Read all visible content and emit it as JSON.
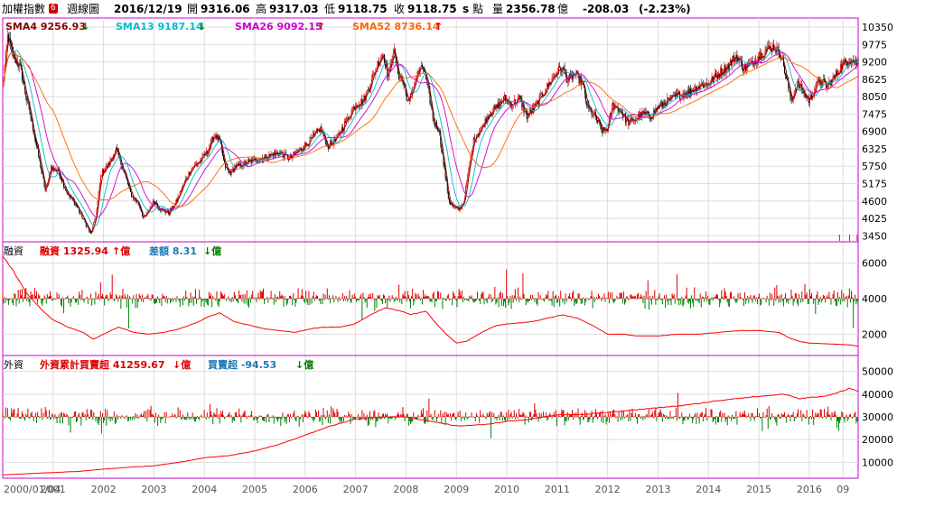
{
  "header": {
    "title": "加權指數",
    "badge": "6",
    "period": "週線圖",
    "date": "2016/12/19",
    "open_label": "開",
    "open": "9316.06",
    "high_label": "高",
    "high": "9317.03",
    "low_label": "低",
    "low": "9118.75",
    "close_label": "收",
    "close": "9118.75",
    "close_suffix": "s",
    "unit_label": "點",
    "vol_label": "量",
    "vol": "2356.78",
    "vol_unit": "億",
    "change": "-208.03",
    "change_pct": "(-2.23%)"
  },
  "ma_legend": [
    {
      "name": "SMA4",
      "value": "9256.93",
      "arrow": "↓",
      "color": "#8b0000",
      "arrow_color": "#008000"
    },
    {
      "name": "SMA13",
      "value": "9187.14",
      "arrow": "↓",
      "color": "#00bcd4",
      "arrow_color": "#008000"
    },
    {
      "name": "SMA26",
      "value": "9092.15",
      "arrow": "↑",
      "color": "#cc00cc",
      "arrow_color": "#dd0000"
    },
    {
      "name": "SMA52",
      "value": "8736.14",
      "arrow": "↑",
      "color": "#ff6600",
      "arrow_color": "#dd0000"
    }
  ],
  "margin_legend": {
    "panel": "融資",
    "a_name": "融資",
    "a_value": "1325.94",
    "a_arrow": "↑",
    "a_unit": "億",
    "b_name": "差額",
    "b_value": "8.31",
    "b_arrow": "↓",
    "b_unit": "億"
  },
  "foreign_legend": {
    "panel": "外資",
    "a_name": "外資累計買賣超",
    "a_value": "41259.67",
    "a_arrow": "↓",
    "a_unit": "億",
    "b_name": "買賣超",
    "b_value": "-94.53",
    "b_arrow": "↓",
    "b_unit": "億"
  },
  "colors": {
    "up": "#dd0000",
    "down": "#008000",
    "candle_body": "#000000",
    "line": "#ff0000",
    "grid": "#dddddd",
    "frame": "#cc00cc"
  },
  "chart_data": [
    {
      "type": "candlestick",
      "title": "加權指數 週線圖",
      "y_ticks": [
        3450,
        4025,
        4600,
        5175,
        5750,
        6325,
        6900,
        7475,
        8050,
        8625,
        9200,
        9775,
        10350
      ],
      "ylim": [
        3250,
        10650
      ],
      "x_ticks": [
        "2000/01/04",
        "2001",
        "2002",
        "2003",
        "2004",
        "2005",
        "2006",
        "2007",
        "2008",
        "2009",
        "2010",
        "2011",
        "2012",
        "2013",
        "2014",
        "2015",
        "2016",
        "09"
      ],
      "price_path": [
        [
          2000.0,
          8400
        ],
        [
          2000.1,
          10100
        ],
        [
          2000.2,
          9400
        ],
        [
          2000.35,
          9000
        ],
        [
          2000.5,
          7800
        ],
        [
          2000.7,
          6200
        ],
        [
          2000.85,
          4900
        ],
        [
          2000.95,
          5700
        ],
        [
          2001.1,
          5600
        ],
        [
          2001.3,
          4800
        ],
        [
          2001.45,
          4500
        ],
        [
          2001.6,
          4000
        ],
        [
          2001.75,
          3500
        ],
        [
          2001.85,
          4100
        ],
        [
          2001.95,
          5500
        ],
        [
          2002.1,
          5800
        ],
        [
          2002.25,
          6300
        ],
        [
          2002.4,
          5600
        ],
        [
          2002.55,
          4800
        ],
        [
          2002.7,
          4500
        ],
        [
          2002.8,
          4000
        ],
        [
          2002.9,
          4300
        ],
        [
          2003.0,
          4600
        ],
        [
          2003.15,
          4300
        ],
        [
          2003.3,
          4200
        ],
        [
          2003.45,
          4600
        ],
        [
          2003.6,
          5200
        ],
        [
          2003.75,
          5700
        ],
        [
          2003.9,
          5900
        ],
        [
          2004.05,
          6200
        ],
        [
          2004.2,
          6800
        ],
        [
          2004.3,
          6600
        ],
        [
          2004.4,
          5800
        ],
        [
          2004.5,
          5500
        ],
        [
          2004.6,
          5700
        ],
        [
          2004.75,
          5800
        ],
        [
          2004.9,
          5900
        ],
        [
          2005.1,
          6000
        ],
        [
          2005.3,
          6100
        ],
        [
          2005.5,
          6200
        ],
        [
          2005.7,
          6000
        ],
        [
          2005.9,
          6300
        ],
        [
          2006.1,
          6600
        ],
        [
          2006.3,
          7000
        ],
        [
          2006.45,
          6400
        ],
        [
          2006.6,
          6600
        ],
        [
          2006.8,
          7200
        ],
        [
          2007.0,
          7800
        ],
        [
          2007.15,
          7900
        ],
        [
          2007.3,
          8500
        ],
        [
          2007.45,
          9200
        ],
        [
          2007.55,
          9500
        ],
        [
          2007.65,
          8700
        ],
        [
          2007.75,
          9600
        ],
        [
          2007.85,
          8800
        ],
        [
          2007.95,
          8500
        ],
        [
          2008.05,
          7800
        ],
        [
          2008.15,
          8400
        ],
        [
          2008.25,
          8900
        ],
        [
          2008.35,
          9000
        ],
        [
          2008.45,
          8200
        ],
        [
          2008.55,
          7200
        ],
        [
          2008.65,
          7000
        ],
        [
          2008.75,
          5800
        ],
        [
          2008.85,
          4600
        ],
        [
          2008.95,
          4400
        ],
        [
          2009.05,
          4300
        ],
        [
          2009.15,
          4600
        ],
        [
          2009.25,
          5700
        ],
        [
          2009.35,
          6700
        ],
        [
          2009.5,
          7000
        ],
        [
          2009.65,
          7500
        ],
        [
          2009.8,
          7700
        ],
        [
          2009.95,
          8000
        ],
        [
          2010.1,
          7800
        ],
        [
          2010.25,
          8000
        ],
        [
          2010.4,
          7400
        ],
        [
          2010.55,
          7700
        ],
        [
          2010.7,
          8100
        ],
        [
          2010.85,
          8500
        ],
        [
          2011.0,
          8900
        ],
        [
          2011.1,
          9000
        ],
        [
          2011.2,
          8600
        ],
        [
          2011.35,
          8800
        ],
        [
          2011.5,
          8500
        ],
        [
          2011.6,
          7700
        ],
        [
          2011.75,
          7400
        ],
        [
          2011.9,
          6900
        ],
        [
          2012.0,
          7000
        ],
        [
          2012.1,
          7800
        ],
        [
          2012.25,
          7600
        ],
        [
          2012.4,
          7200
        ],
        [
          2012.55,
          7300
        ],
        [
          2012.7,
          7500
        ],
        [
          2012.85,
          7400
        ],
        [
          2013.0,
          7700
        ],
        [
          2013.2,
          7900
        ],
        [
          2013.4,
          8100
        ],
        [
          2013.6,
          8200
        ],
        [
          2013.8,
          8400
        ],
        [
          2014.0,
          8500
        ],
        [
          2014.2,
          8800
        ],
        [
          2014.4,
          9100
        ],
        [
          2014.55,
          9400
        ],
        [
          2014.7,
          9000
        ],
        [
          2014.85,
          9100
        ],
        [
          2015.0,
          9400
        ],
        [
          2015.15,
          9600
        ],
        [
          2015.3,
          9700
        ],
        [
          2015.45,
          9400
        ],
        [
          2015.55,
          8600
        ],
        [
          2015.65,
          7900
        ],
        [
          2015.75,
          8500
        ],
        [
          2015.85,
          8300
        ],
        [
          2016.0,
          7900
        ],
        [
          2016.1,
          8300
        ],
        [
          2016.2,
          8600
        ],
        [
          2016.35,
          8400
        ],
        [
          2016.5,
          8700
        ],
        [
          2016.65,
          9100
        ],
        [
          2016.8,
          9300
        ],
        [
          2016.97,
          9119
        ]
      ],
      "sma_legend": [
        "SMA4",
        "SMA13",
        "SMA26",
        "SMA52"
      ]
    },
    {
      "type": "bar+line",
      "title": "融資",
      "y_ticks": [
        2000,
        4000,
        6000
      ],
      "ylim": [
        800,
        7200
      ],
      "bar_baseline": 4000,
      "line_path": [
        [
          2000.0,
          6400
        ],
        [
          2000.2,
          5600
        ],
        [
          2000.5,
          4200
        ],
        [
          2000.8,
          3300
        ],
        [
          2001.0,
          2800
        ],
        [
          2001.3,
          2400
        ],
        [
          2001.6,
          2100
        ],
        [
          2001.8,
          1700
        ],
        [
          2002.0,
          2000
        ],
        [
          2002.3,
          2400
        ],
        [
          2002.6,
          2100
        ],
        [
          2002.9,
          2000
        ],
        [
          2003.2,
          2100
        ],
        [
          2003.5,
          2300
        ],
        [
          2003.8,
          2600
        ],
        [
          2004.1,
          3000
        ],
        [
          2004.3,
          3200
        ],
        [
          2004.6,
          2700
        ],
        [
          2004.9,
          2500
        ],
        [
          2005.2,
          2300
        ],
        [
          2005.5,
          2200
        ],
        [
          2005.8,
          2100
        ],
        [
          2006.1,
          2300
        ],
        [
          2006.4,
          2400
        ],
        [
          2006.7,
          2400
        ],
        [
          2007.0,
          2600
        ],
        [
          2007.3,
          3100
        ],
        [
          2007.6,
          3500
        ],
        [
          2007.9,
          3300
        ],
        [
          2008.1,
          3100
        ],
        [
          2008.4,
          3300
        ],
        [
          2008.6,
          2600
        ],
        [
          2008.8,
          2000
        ],
        [
          2009.0,
          1500
        ],
        [
          2009.2,
          1600
        ],
        [
          2009.5,
          2100
        ],
        [
          2009.8,
          2500
        ],
        [
          2010.1,
          2600
        ],
        [
          2010.5,
          2700
        ],
        [
          2010.8,
          2900
        ],
        [
          2011.1,
          3100
        ],
        [
          2011.4,
          2900
        ],
        [
          2011.7,
          2500
        ],
        [
          2012.0,
          2000
        ],
        [
          2012.3,
          2000
        ],
        [
          2012.6,
          1900
        ],
        [
          2013.0,
          1900
        ],
        [
          2013.4,
          2000
        ],
        [
          2013.8,
          2000
        ],
        [
          2014.2,
          2100
        ],
        [
          2014.6,
          2200
        ],
        [
          2015.0,
          2200
        ],
        [
          2015.4,
          2100
        ],
        [
          2015.6,
          1800
        ],
        [
          2015.8,
          1600
        ],
        [
          2016.0,
          1500
        ],
        [
          2016.4,
          1450
        ],
        [
          2016.8,
          1400
        ],
        [
          2016.97,
          1326
        ]
      ],
      "bar_amplitude": 420
    },
    {
      "type": "bar+line",
      "title": "外資",
      "y_ticks": [
        10000,
        20000,
        30000,
        40000,
        50000
      ],
      "ylim": [
        3000,
        57000
      ],
      "bar_baseline": 30000,
      "line_path": [
        [
          2000.0,
          4500
        ],
        [
          2000.5,
          5000
        ],
        [
          2001.0,
          5500
        ],
        [
          2001.5,
          6000
        ],
        [
          2002.0,
          7000
        ],
        [
          2002.5,
          7800
        ],
        [
          2003.0,
          8500
        ],
        [
          2003.5,
          10000
        ],
        [
          2004.0,
          12000
        ],
        [
          2004.5,
          13000
        ],
        [
          2005.0,
          15000
        ],
        [
          2005.5,
          18000
        ],
        [
          2006.0,
          22000
        ],
        [
          2006.5,
          26000
        ],
        [
          2007.0,
          29000
        ],
        [
          2007.5,
          30000
        ],
        [
          2008.0,
          30000
        ],
        [
          2008.5,
          28000
        ],
        [
          2009.0,
          26000
        ],
        [
          2009.5,
          26500
        ],
        [
          2010.0,
          28000
        ],
        [
          2010.5,
          29000
        ],
        [
          2011.0,
          31000
        ],
        [
          2011.5,
          31000
        ],
        [
          2012.0,
          32000
        ],
        [
          2012.5,
          33000
        ],
        [
          2013.0,
          34000
        ],
        [
          2013.5,
          35000
        ],
        [
          2014.0,
          36500
        ],
        [
          2014.5,
          38000
        ],
        [
          2015.0,
          39000
        ],
        [
          2015.5,
          40000
        ],
        [
          2015.8,
          38000
        ],
        [
          2016.0,
          38500
        ],
        [
          2016.3,
          39000
        ],
        [
          2016.6,
          41000
        ],
        [
          2016.8,
          42500
        ],
        [
          2016.97,
          41260
        ]
      ],
      "bar_amplitude": 2800
    }
  ]
}
